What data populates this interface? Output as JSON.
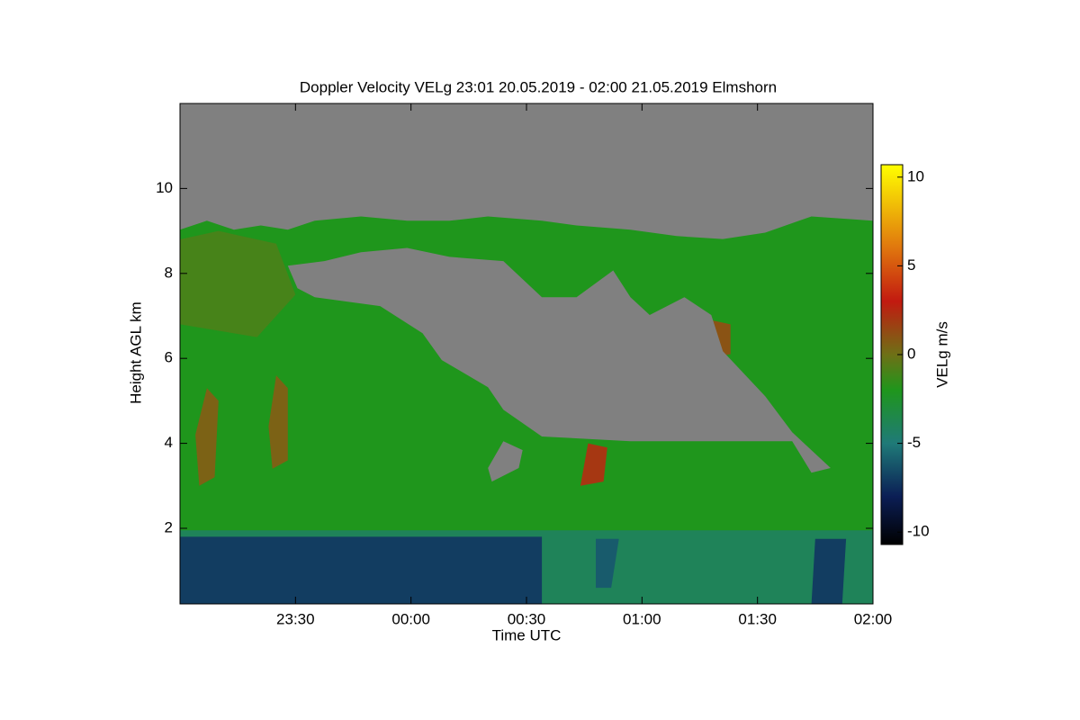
{
  "chart_data": {
    "type": "heatmap",
    "title": "Doppler Velocity VELg   23:01 20.05.2019 - 02:00 21.05.2019 Elmshorn",
    "x_label": "Time UTC",
    "y_label": "Height AGL km",
    "colorbar_label": "VELg m/s",
    "xlim": [
      0,
      180
    ],
    "xticks": [
      {
        "value": 30,
        "label": "23:30"
      },
      {
        "value": 60,
        "label": "00:00"
      },
      {
        "value": 90,
        "label": "00:30"
      },
      {
        "value": 120,
        "label": "01:00"
      },
      {
        "value": 150,
        "label": "01:30"
      },
      {
        "value": 180,
        "label": "02:00"
      }
    ],
    "ylim": [
      0.22,
      12
    ],
    "yticks": [
      2,
      4,
      6,
      8,
      10
    ],
    "clim": [
      -10.7,
      10.7
    ],
    "cticks": [
      -10,
      -5,
      0,
      5,
      10
    ],
    "no_signal_color": "#808080",
    "colormap": [
      {
        "value": -10.7,
        "color": "#000000"
      },
      {
        "value": -8,
        "color": "#0b1e55"
      },
      {
        "value": -5,
        "color": "#1f7a78"
      },
      {
        "value": -2,
        "color": "#1f961c"
      },
      {
        "value": 0,
        "color": "#6e7016"
      },
      {
        "value": 3,
        "color": "#c21a10"
      },
      {
        "value": 6,
        "color": "#e0760e"
      },
      {
        "value": 10.7,
        "color": "#ffff00"
      }
    ],
    "regions": [
      {
        "value": -2,
        "polygon": [
          [
            0,
            0.22
          ],
          [
            0,
            9.03
          ],
          [
            7,
            9.24
          ],
          [
            14,
            9.03
          ],
          [
            21,
            9.13
          ],
          [
            28,
            9.03
          ],
          [
            35,
            9.24
          ],
          [
            47,
            9.34
          ],
          [
            59,
            9.24
          ],
          [
            70,
            9.24
          ],
          [
            80,
            9.34
          ],
          [
            94,
            9.24
          ],
          [
            103,
            9.13
          ],
          [
            117,
            9.03
          ],
          [
            129,
            8.88
          ],
          [
            141,
            8.81
          ],
          [
            152,
            8.96
          ],
          [
            164,
            9.34
          ],
          [
            180,
            9.24
          ],
          [
            180,
            0.22
          ]
        ]
      },
      {
        "value": -1,
        "polygon": [
          [
            0,
            8.8
          ],
          [
            10,
            9.0
          ],
          [
            25,
            8.7
          ],
          [
            30,
            7.5
          ],
          [
            20,
            6.5
          ],
          [
            0,
            6.8
          ]
        ]
      },
      {
        "value": 0.5,
        "polygon": [
          [
            5,
            3.0
          ],
          [
            9,
            3.2
          ],
          [
            10,
            5.0
          ],
          [
            7,
            5.3
          ],
          [
            4,
            4.2
          ]
        ]
      },
      {
        "value": 0.5,
        "polygon": [
          [
            24,
            3.4
          ],
          [
            28,
            3.6
          ],
          [
            28,
            5.3
          ],
          [
            25,
            5.6
          ],
          [
            23,
            4.4
          ]
        ]
      },
      {
        "value": 2,
        "polygon": [
          [
            104,
            3.0
          ],
          [
            110,
            3.1
          ],
          [
            111,
            3.9
          ],
          [
            106,
            4.0
          ]
        ]
      },
      {
        "value": 1,
        "polygon": [
          [
            137,
            6.0
          ],
          [
            143,
            6.1
          ],
          [
            143,
            6.8
          ],
          [
            138,
            6.9
          ]
        ]
      },
      {
        "value": -4,
        "polygon": [
          [
            0,
            0.22
          ],
          [
            0,
            1.95
          ],
          [
            180,
            1.95
          ],
          [
            180,
            0.22
          ]
        ]
      },
      {
        "value": -7,
        "polygon": [
          [
            0,
            0.22
          ],
          [
            0,
            1.8
          ],
          [
            94,
            1.8
          ],
          [
            94,
            0.22
          ]
        ]
      },
      {
        "value": -6,
        "polygon": [
          [
            108,
            0.6
          ],
          [
            108,
            1.75
          ],
          [
            114,
            1.75
          ],
          [
            112,
            0.6
          ]
        ]
      },
      {
        "value": -7,
        "polygon": [
          [
            164,
            0.22
          ],
          [
            165,
            1.75
          ],
          [
            173,
            1.75
          ],
          [
            172,
            0.22
          ]
        ]
      }
    ],
    "no_signal": [
      [
        [
          28,
          8.18
        ],
        [
          37.5,
          8.29
        ],
        [
          47,
          8.5
        ],
        [
          59,
          8.6
        ],
        [
          70,
          8.39
        ],
        [
          84,
          8.29
        ],
        [
          94,
          7.44
        ],
        [
          103,
          7.44
        ],
        [
          112.5,
          8.07
        ],
        [
          117,
          7.44
        ],
        [
          122,
          7.02
        ],
        [
          131,
          7.44
        ],
        [
          138,
          7.02
        ],
        [
          141,
          6.17
        ],
        [
          152,
          5.11
        ],
        [
          159,
          4.26
        ],
        [
          169,
          3.42
        ],
        [
          164,
          3.31
        ],
        [
          159,
          4.05
        ],
        [
          145,
          4.05
        ],
        [
          117,
          4.05
        ],
        [
          94,
          4.16
        ],
        [
          84,
          4.79
        ],
        [
          80,
          5.32
        ],
        [
          68,
          5.96
        ],
        [
          63,
          6.59
        ],
        [
          52,
          7.23
        ],
        [
          35,
          7.44
        ],
        [
          30.5,
          7.65
        ]
      ],
      [
        [
          80,
          3.42
        ],
        [
          84,
          4.05
        ],
        [
          89,
          3.84
        ],
        [
          88,
          3.42
        ],
        [
          81,
          3.1
        ]
      ]
    ]
  }
}
